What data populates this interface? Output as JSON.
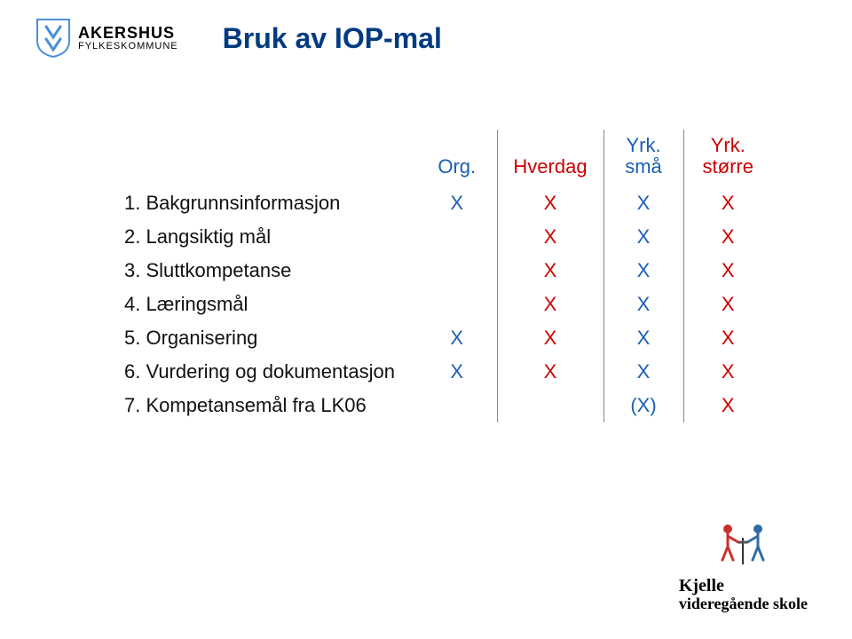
{
  "colors": {
    "title": "#003a80",
    "org": "#1a5fb4",
    "hverdag": "#cc0000",
    "sma": "#1a5fb4",
    "storre": "#cc0000",
    "row_text": "#111111",
    "divider": "#888888"
  },
  "logo": {
    "line1": "AKERSHUS",
    "line2": "FYLKESKOMMUNE"
  },
  "title": "Bruk av IOP-mal",
  "headers": {
    "label": "",
    "org": "Org.",
    "hverdag": "Hverdag",
    "sma": "Yrk. små",
    "storre": "Yrk. større"
  },
  "rows": [
    {
      "num": "1.",
      "label": "Bakgrunnsinformasjon",
      "org": "X",
      "hverdag": "X",
      "sma": "X",
      "storre": "X"
    },
    {
      "num": "2.",
      "label": "Langsiktig mål",
      "org": "",
      "hverdag": "X",
      "sma": "X",
      "storre": "X"
    },
    {
      "num": "3.",
      "label": "Sluttkompetanse",
      "org": "",
      "hverdag": "X",
      "sma": "X",
      "storre": "X"
    },
    {
      "num": "4.",
      "label": "Læringsmål",
      "org": "",
      "hverdag": "X",
      "sma": "X",
      "storre": "X"
    },
    {
      "num": "5.",
      "label": "Organisering",
      "org": "X",
      "hverdag": "X",
      "sma": "X",
      "storre": "X"
    },
    {
      "num": "6.",
      "label": "Vurdering og dokumentasjon",
      "org": "X",
      "hverdag": "X",
      "sma": "X",
      "storre": "X"
    },
    {
      "num": "7.",
      "label": "Kompetansemål fra LK06",
      "org": "",
      "hverdag": "",
      "sma": "(X)",
      "storre": "X"
    }
  ],
  "footer": {
    "line1": "Kjelle",
    "line2": "videregående skole"
  }
}
